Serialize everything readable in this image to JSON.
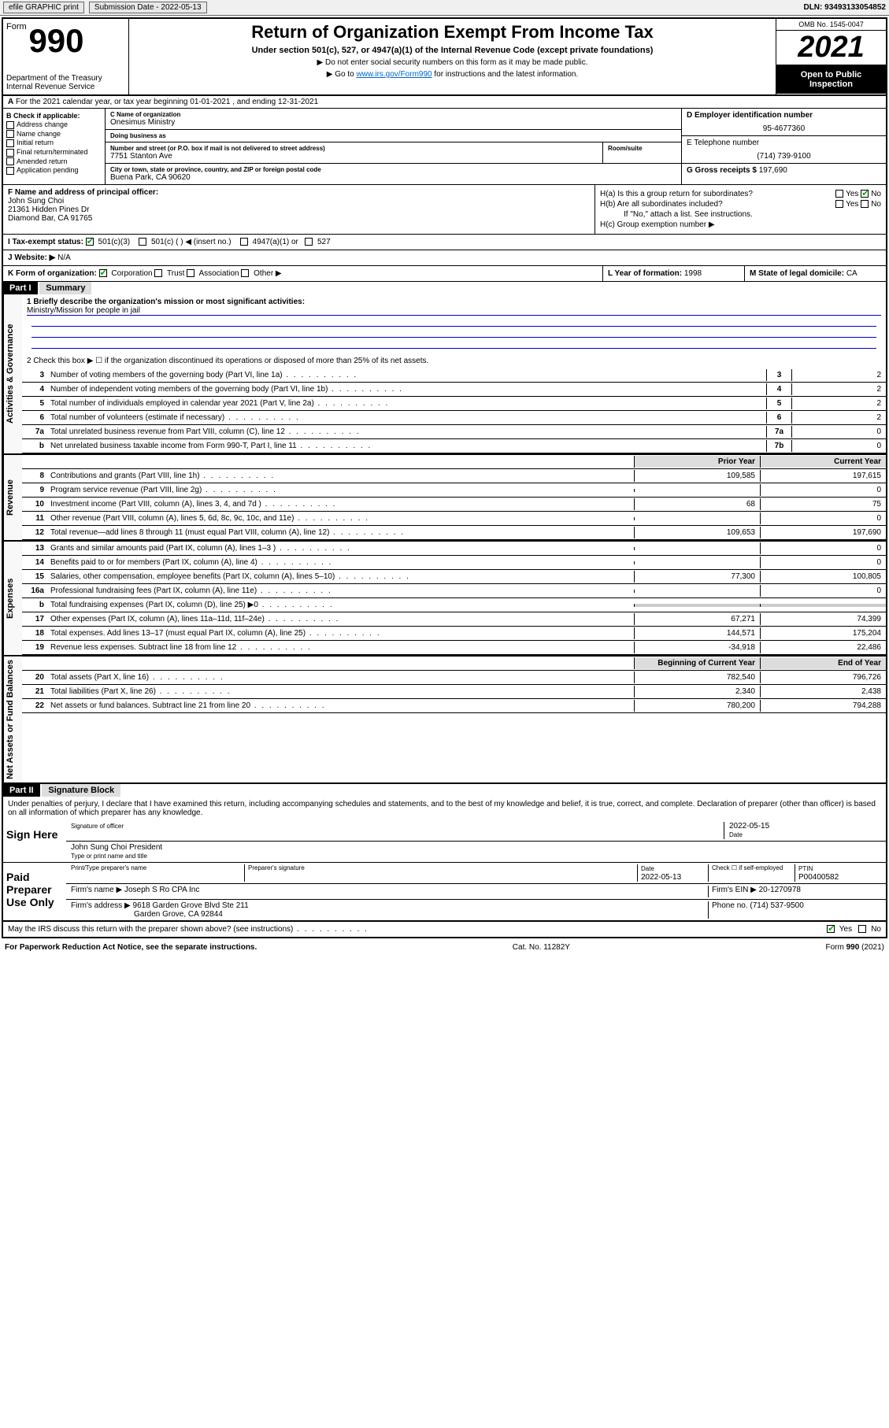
{
  "toolbar": {
    "efile": "efile GRAPHIC print",
    "submission_label": "Submission Date - 2022-05-13",
    "dln": "DLN: 93493133054852"
  },
  "header": {
    "form_word": "Form",
    "form_number": "990",
    "title": "Return of Organization Exempt From Income Tax",
    "subtitle": "Under section 501(c), 527, or 4947(a)(1) of the Internal Revenue Code (except private foundations)",
    "note1": "▶ Do not enter social security numbers on this form as it may be made public.",
    "note2_pre": "▶ Go to ",
    "note2_link": "www.irs.gov/Form990",
    "note2_post": " for instructions and the latest information.",
    "dept": "Department of the Treasury",
    "irs": "Internal Revenue Service",
    "omb": "OMB No. 1545-0047",
    "year": "2021",
    "inspect": "Open to Public Inspection"
  },
  "row_a": "For the 2021 calendar year, or tax year beginning 01-01-2021   , and ending 12-31-2021",
  "section_b": {
    "label": "B Check if applicable:",
    "items": [
      "Address change",
      "Name change",
      "Initial return",
      "Final return/terminated",
      "Amended return",
      "Application pending"
    ]
  },
  "section_c": {
    "name_label": "C Name of organization",
    "name": "Onesimus Ministry",
    "dba_label": "Doing business as",
    "dba": "",
    "street_label": "Number and street (or P.O. box if mail is not delivered to street address)",
    "room_label": "Room/suite",
    "street": "7751 Stanton Ave",
    "city_label": "City or town, state or province, country, and ZIP or foreign postal code",
    "city": "Buena Park, CA  90620"
  },
  "section_d": {
    "ein_label": "D Employer identification number",
    "ein": "95-4677360",
    "phone_label": "E Telephone number",
    "phone": "(714) 739-9100",
    "gross_label": "G Gross receipts $",
    "gross": "197,690"
  },
  "section_f": {
    "label": "F Name and address of principal officer:",
    "name": "John Sung Choi",
    "addr1": "21361 Hidden Pines Dr",
    "addr2": "Diamond Bar, CA  91765"
  },
  "section_h": {
    "a": "H(a)  Is this a group return for subordinates?",
    "b": "H(b)  Are all subordinates included?",
    "b_note": "If \"No,\" attach a list. See instructions.",
    "c": "H(c)  Group exemption number ▶",
    "yes": "Yes",
    "no": "No"
  },
  "row_i": {
    "label": "I  Tax-exempt status:",
    "opt1": "501(c)(3)",
    "opt2": "501(c) (   ) ◀ (insert no.)",
    "opt3": "4947(a)(1) or",
    "opt4": "527"
  },
  "row_j": {
    "label": "J  Website: ▶",
    "value": "N/A"
  },
  "row_k": {
    "label": "K Form of organization:",
    "corp": "Corporation",
    "trust": "Trust",
    "assoc": "Association",
    "other": "Other ▶"
  },
  "row_l": {
    "label": "L Year of formation:",
    "value": "1998"
  },
  "row_m": {
    "label": "M State of legal domicile:",
    "value": "CA"
  },
  "part1": {
    "header": "Part I",
    "title": "Summary",
    "line1_label": "1  Briefly describe the organization's mission or most significant activities:",
    "line1_value": "Ministry/Mission for people in jail",
    "line2": "2  Check this box ▶ ☐  if the organization discontinued its operations or disposed of more than 25% of its net assets.",
    "lines_gov": [
      {
        "n": "3",
        "desc": "Number of voting members of the governing body (Part VI, line 1a)",
        "box": "3",
        "val": "2"
      },
      {
        "n": "4",
        "desc": "Number of independent voting members of the governing body (Part VI, line 1b)",
        "box": "4",
        "val": "2"
      },
      {
        "n": "5",
        "desc": "Total number of individuals employed in calendar year 2021 (Part V, line 2a)",
        "box": "5",
        "val": "2"
      },
      {
        "n": "6",
        "desc": "Total number of volunteers (estimate if necessary)",
        "box": "6",
        "val": "2"
      },
      {
        "n": "7a",
        "desc": "Total unrelated business revenue from Part VIII, column (C), line 12",
        "box": "7a",
        "val": "0"
      },
      {
        "n": "b",
        "desc": "Net unrelated business taxable income from Form 990-T, Part I, line 11",
        "box": "7b",
        "val": "0"
      }
    ],
    "col_prior": "Prior Year",
    "col_current": "Current Year",
    "lines_rev": [
      {
        "n": "8",
        "desc": "Contributions and grants (Part VIII, line 1h)",
        "prior": "109,585",
        "curr": "197,615"
      },
      {
        "n": "9",
        "desc": "Program service revenue (Part VIII, line 2g)",
        "prior": "",
        "curr": "0"
      },
      {
        "n": "10",
        "desc": "Investment income (Part VIII, column (A), lines 3, 4, and 7d )",
        "prior": "68",
        "curr": "75"
      },
      {
        "n": "11",
        "desc": "Other revenue (Part VIII, column (A), lines 5, 6d, 8c, 9c, 10c, and 11e)",
        "prior": "",
        "curr": "0"
      },
      {
        "n": "12",
        "desc": "Total revenue—add lines 8 through 11 (must equal Part VIII, column (A), line 12)",
        "prior": "109,653",
        "curr": "197,690"
      }
    ],
    "lines_exp": [
      {
        "n": "13",
        "desc": "Grants and similar amounts paid (Part IX, column (A), lines 1–3 )",
        "prior": "",
        "curr": "0"
      },
      {
        "n": "14",
        "desc": "Benefits paid to or for members (Part IX, column (A), line 4)",
        "prior": "",
        "curr": "0"
      },
      {
        "n": "15",
        "desc": "Salaries, other compensation, employee benefits (Part IX, column (A), lines 5–10)",
        "prior": "77,300",
        "curr": "100,805"
      },
      {
        "n": "16a",
        "desc": "Professional fundraising fees (Part IX, column (A), line 11e)",
        "prior": "",
        "curr": "0"
      },
      {
        "n": "b",
        "desc": "Total fundraising expenses (Part IX, column (D), line 25) ▶0",
        "prior": "",
        "curr": "",
        "shaded": true
      },
      {
        "n": "17",
        "desc": "Other expenses (Part IX, column (A), lines 11a–11d, 11f–24e)",
        "prior": "67,271",
        "curr": "74,399"
      },
      {
        "n": "18",
        "desc": "Total expenses. Add lines 13–17 (must equal Part IX, column (A), line 25)",
        "prior": "144,571",
        "curr": "175,204"
      },
      {
        "n": "19",
        "desc": "Revenue less expenses. Subtract line 18 from line 12",
        "prior": "-34,918",
        "curr": "22,486"
      }
    ],
    "col_begin": "Beginning of Current Year",
    "col_end": "End of Year",
    "lines_net": [
      {
        "n": "20",
        "desc": "Total assets (Part X, line 16)",
        "prior": "782,540",
        "curr": "796,726"
      },
      {
        "n": "21",
        "desc": "Total liabilities (Part X, line 26)",
        "prior": "2,340",
        "curr": "2,438"
      },
      {
        "n": "22",
        "desc": "Net assets or fund balances. Subtract line 21 from line 20",
        "prior": "780,200",
        "curr": "794,288"
      }
    ],
    "side_gov": "Activities & Governance",
    "side_rev": "Revenue",
    "side_exp": "Expenses",
    "side_net": "Net Assets or Fund Balances"
  },
  "part2": {
    "header": "Part II",
    "title": "Signature Block",
    "penalty": "Under penalties of perjury, I declare that I have examined this return, including accompanying schedules and statements, and to the best of my knowledge and belief, it is true, correct, and complete. Declaration of preparer (other than officer) is based on all information of which preparer has any knowledge.",
    "sign_here": "Sign Here",
    "sig_officer": "Signature of officer",
    "sig_date": "2022-05-15",
    "date_label": "Date",
    "officer_name": "John Sung Choi  President",
    "officer_sub": "Type or print name and title",
    "paid_prep": "Paid Preparer Use Only",
    "prep_name_label": "Print/Type preparer's name",
    "prep_sig_label": "Preparer's signature",
    "prep_date": "2022-05-13",
    "check_self": "Check ☐ if self-employed",
    "ptin_label": "PTIN",
    "ptin": "P00400582",
    "firm_name_label": "Firm's name    ▶",
    "firm_name": "Joseph S Ro CPA Inc",
    "firm_ein_label": "Firm's EIN ▶",
    "firm_ein": "20-1270978",
    "firm_addr_label": "Firm's address ▶",
    "firm_addr1": "9618 Garden Grove Blvd Ste 211",
    "firm_addr2": "Garden Grove, CA  92844",
    "firm_phone_label": "Phone no.",
    "firm_phone": "(714) 537-9500",
    "discuss": "May the IRS discuss this return with the preparer shown above? (see instructions)"
  },
  "footer": {
    "left": "For Paperwork Reduction Act Notice, see the separate instructions.",
    "mid": "Cat. No. 11282Y",
    "right": "Form 990 (2021)"
  },
  "colors": {
    "link": "#0066cc",
    "check": "#00aa00",
    "rule": "#0000cc"
  }
}
